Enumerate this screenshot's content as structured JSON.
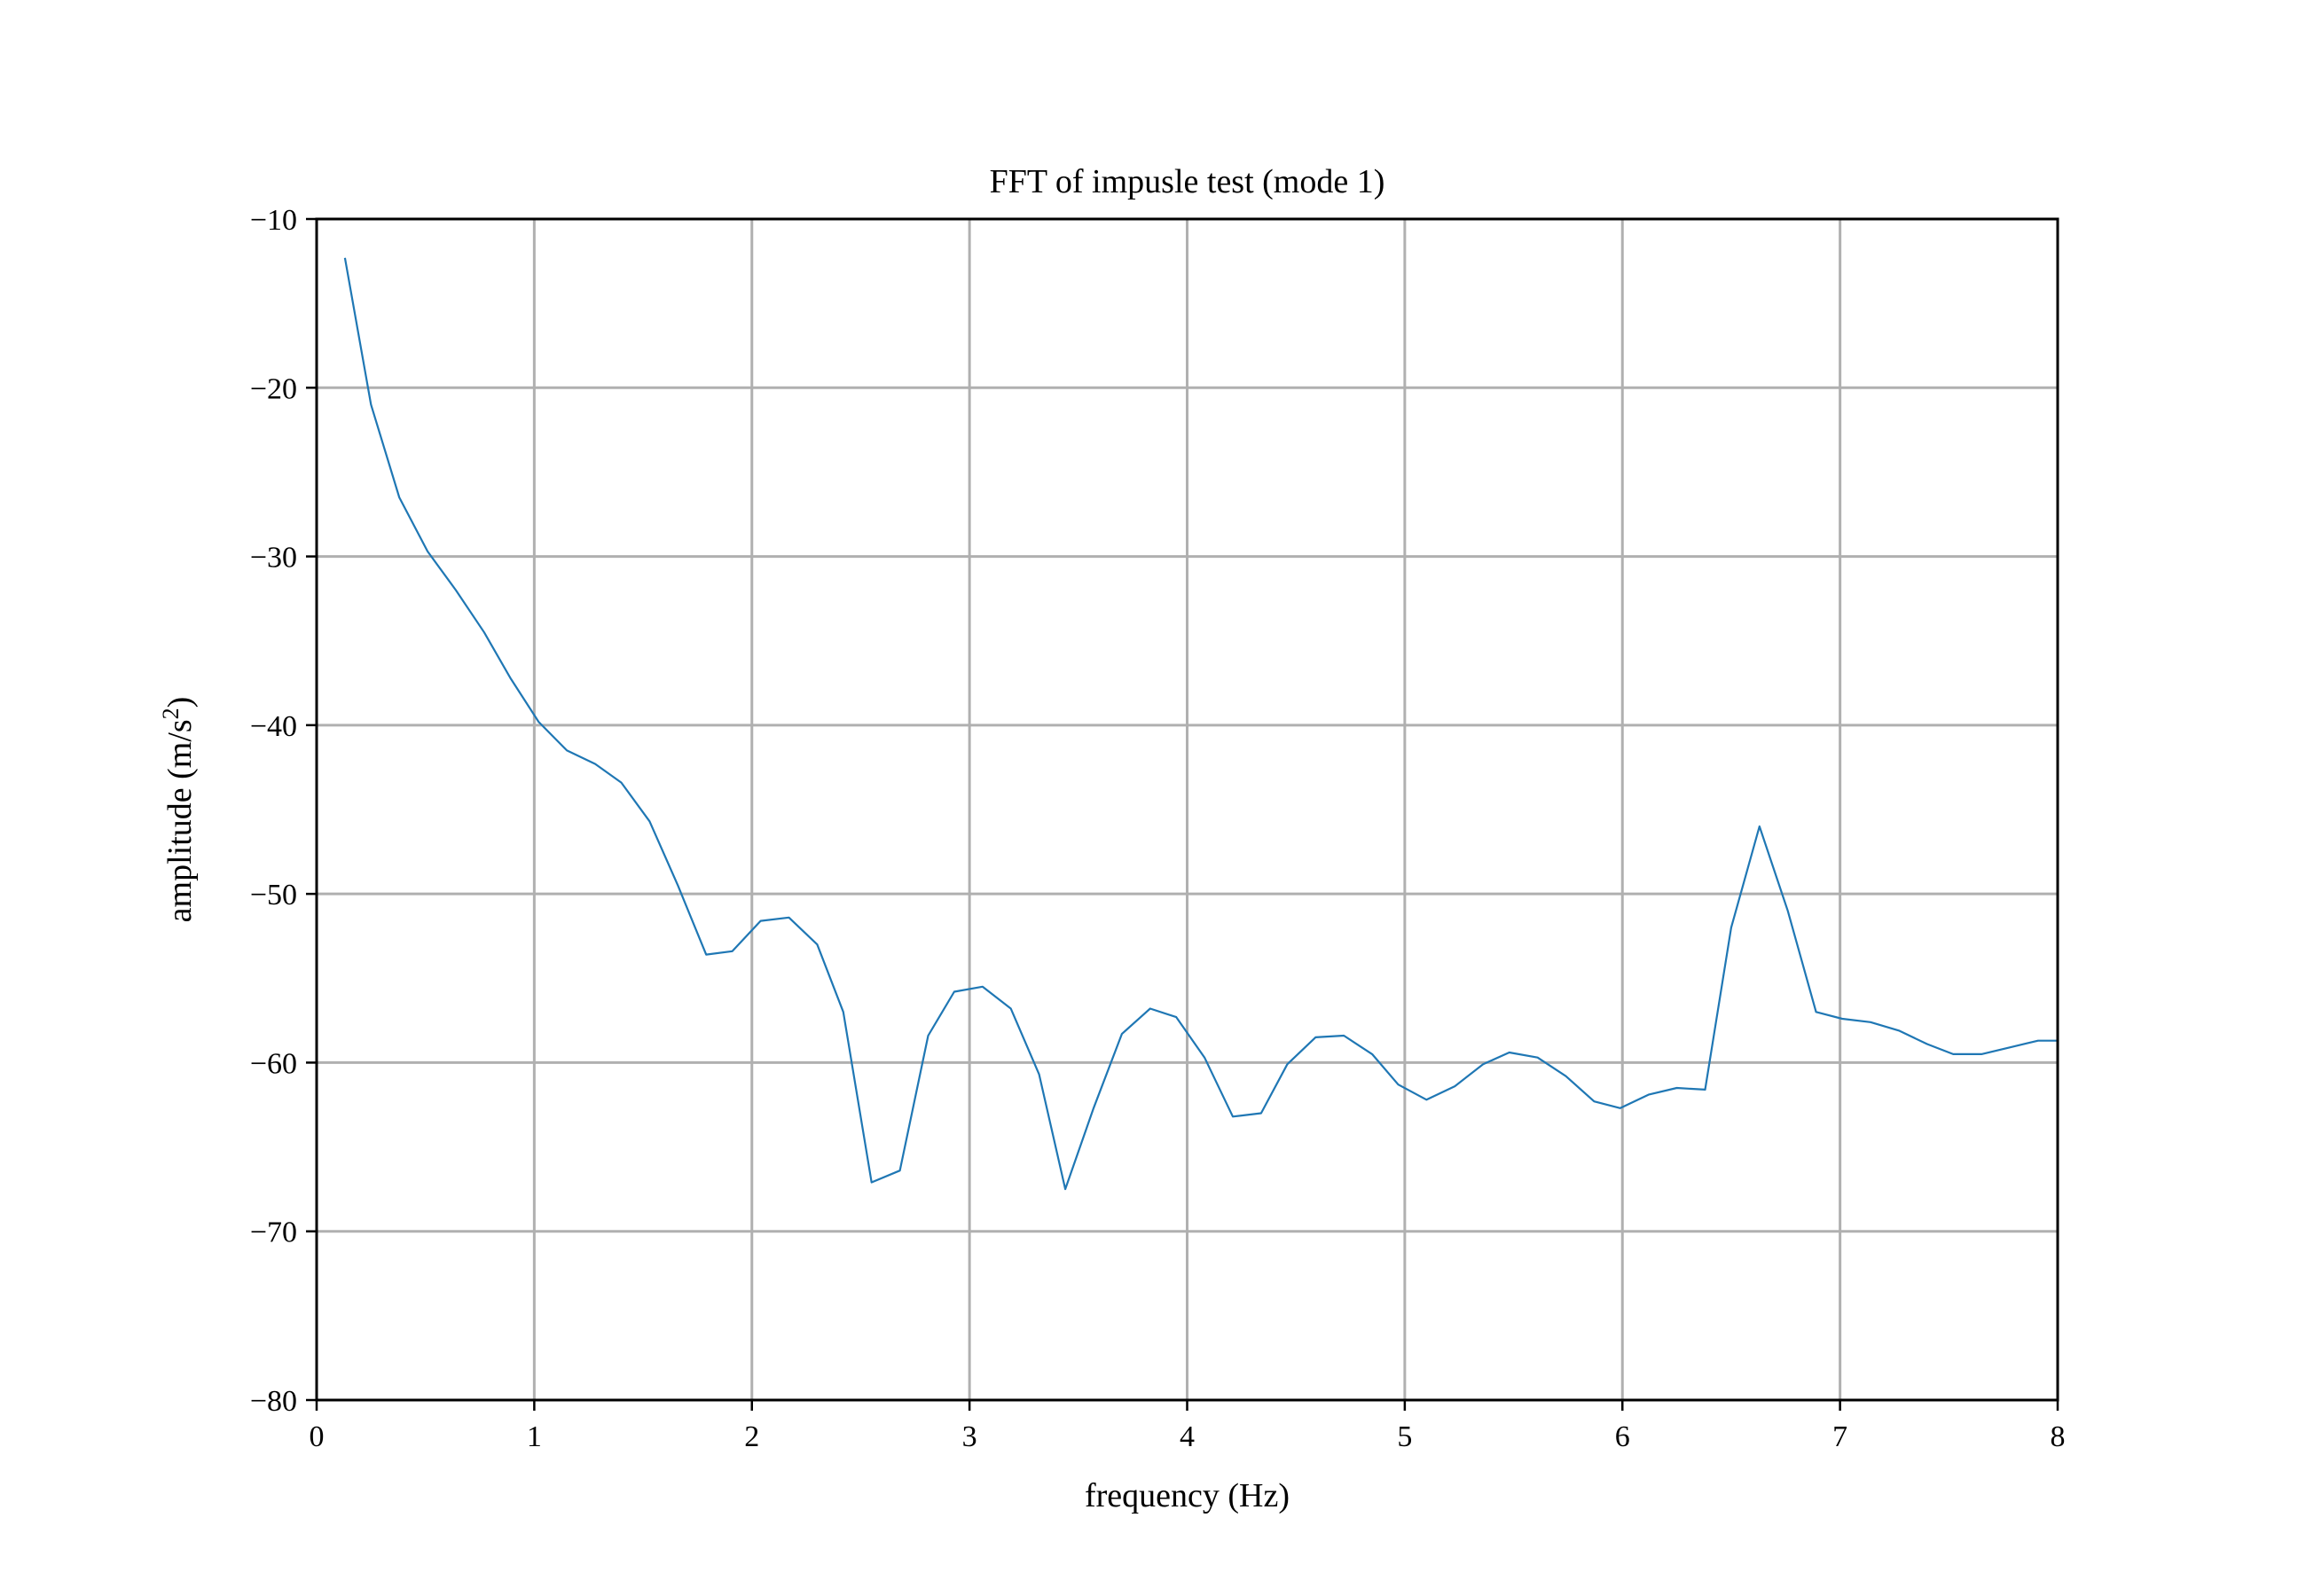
{
  "chart_data": {
    "type": "line",
    "title": "FFT of impusle test (mode 1)",
    "xlabel": "frequency (Hz)",
    "ylabel_main": "amplitude (m/s",
    "ylabel_sup": "2",
    "ylabel_end": ")",
    "xlim": [
      0,
      8
    ],
    "ylim": [
      -80,
      -10
    ],
    "grid": true,
    "x_ticks": [
      0,
      1,
      2,
      3,
      4,
      5,
      6,
      7,
      8
    ],
    "x_tick_labels": [
      "0",
      "1",
      "2",
      "3",
      "4",
      "5",
      "6",
      "7",
      "8"
    ],
    "y_ticks": [
      -80,
      -70,
      -60,
      -50,
      -40,
      -30,
      -20,
      -10
    ],
    "y_tick_labels": [
      "−80",
      "−70",
      "−60",
      "−50",
      "−40",
      "−30",
      "−20",
      "−10"
    ],
    "colors": {
      "line": "#1f77b4",
      "grid": "#b0b0b0",
      "axes": "#000000"
    },
    "series": [
      {
        "x": [
          0.13,
          0.25,
          0.38,
          0.51,
          0.64,
          0.77,
          0.89,
          1.02,
          1.15,
          1.28,
          1.4,
          1.53,
          1.66,
          1.79,
          1.91,
          2.04,
          2.17,
          2.3,
          2.42,
          2.55,
          2.68,
          2.81,
          2.93,
          3.06,
          3.19,
          3.32,
          3.44,
          3.57,
          3.7,
          3.83,
          3.95,
          4.08,
          4.21,
          4.34,
          4.46,
          4.59,
          4.72,
          4.85,
          4.97,
          5.1,
          5.23,
          5.36,
          5.48,
          5.61,
          5.74,
          5.87,
          5.99,
          6.12,
          6.25,
          6.38,
          6.5,
          6.63,
          6.76,
          6.89,
          7.01,
          7.14,
          7.27,
          7.4,
          7.52,
          7.65,
          7.78,
          7.91,
          8.0
        ],
        "values": [
          -12.3,
          -21.0,
          -26.5,
          -29.7,
          -32.0,
          -34.5,
          -37.2,
          -39.8,
          -41.5,
          -42.3,
          -43.4,
          -45.7,
          -49.5,
          -53.6,
          -53.4,
          -51.6,
          -51.4,
          -53.0,
          -57.0,
          -67.1,
          -66.4,
          -58.4,
          -55.8,
          -55.5,
          -56.8,
          -60.7,
          -67.5,
          -62.7,
          -58.3,
          -56.8,
          -57.3,
          -59.7,
          -63.2,
          -63.0,
          -60.1,
          -58.5,
          -58.4,
          -59.5,
          -61.3,
          -62.2,
          -61.4,
          -60.1,
          -59.4,
          -59.7,
          -60.8,
          -62.3,
          -62.7,
          -61.9,
          -61.5,
          -61.6,
          -52.0,
          -46.0,
          -51.0,
          -57.0,
          -57.4,
          -57.6,
          -58.1,
          -58.9,
          -59.5,
          -59.5,
          -59.1,
          -58.7,
          -58.7
        ]
      }
    ]
  }
}
